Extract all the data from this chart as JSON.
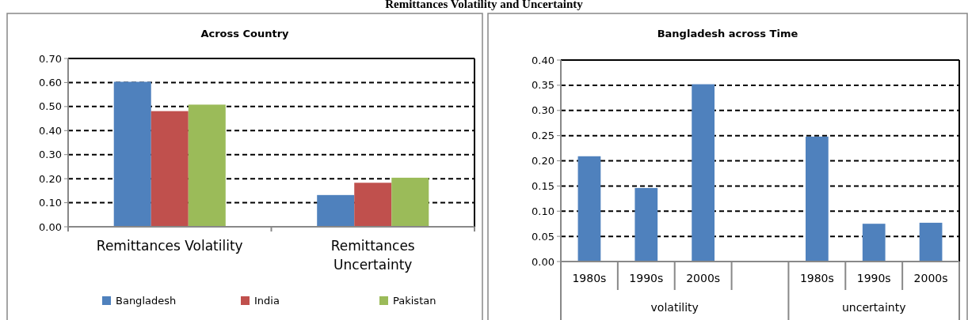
{
  "chart_data": [
    {
      "type": "bar",
      "title": "Across Country",
      "annotations": [
        "Remittances Volatility and Uncertainty"
      ],
      "categories": [
        "Remittances Volatility",
        "Remittances Uncertainty"
      ],
      "series": [
        {
          "name": "Bangladesh",
          "color": "#4f81bd",
          "values": [
            0.603,
            0.132
          ]
        },
        {
          "name": "India",
          "color": "#c0504d",
          "values": [
            0.481,
            0.183
          ]
        },
        {
          "name": "Pakistan",
          "color": "#9bbb59",
          "values": [
            0.508,
            0.204
          ]
        }
      ],
      "ylim": [
        0,
        0.7
      ],
      "yticks": [
        {
          "value": 0,
          "label": "0.00"
        },
        {
          "value": 0.1,
          "label": "0.10"
        },
        {
          "value": 0.2,
          "label": "0.20"
        },
        {
          "value": 0.3,
          "label": "0.30"
        },
        {
          "value": 0.4,
          "label": "0.40"
        },
        {
          "value": 0.5,
          "label": "0.50"
        },
        {
          "value": 0.6,
          "label": "0.60"
        },
        {
          "value": 0.7,
          "label": "0.70"
        }
      ],
      "grid": "y",
      "legend": "bottom"
    },
    {
      "type": "bar",
      "title": "Bangladesh across Time",
      "annotations": [
        "volatility",
        "uncertainty"
      ],
      "categories": [
        "1980s",
        "1990s",
        "2000s",
        null,
        "1980s",
        "1990s",
        "2000s"
      ],
      "series": [
        {
          "color": "#4f81bd",
          "values": [
            0.209,
            0.146,
            0.352,
            null,
            0.248,
            0.075,
            0.077
          ]
        }
      ],
      "ylim": [
        0,
        0.4
      ],
      "yticks": [
        {
          "value": 0,
          "label": "0.00"
        },
        {
          "value": 0.05,
          "label": "0.05"
        },
        {
          "value": 0.1,
          "label": "0.10"
        },
        {
          "value": 0.15,
          "label": "0.15"
        },
        {
          "value": 0.2,
          "label": "0.20"
        },
        {
          "value": 0.25,
          "label": "0.25"
        },
        {
          "value": 0.3,
          "label": "0.30"
        },
        {
          "value": 0.35,
          "label": "0.35"
        },
        {
          "value": 0.4,
          "label": "0.40"
        }
      ],
      "grid": "y"
    }
  ]
}
